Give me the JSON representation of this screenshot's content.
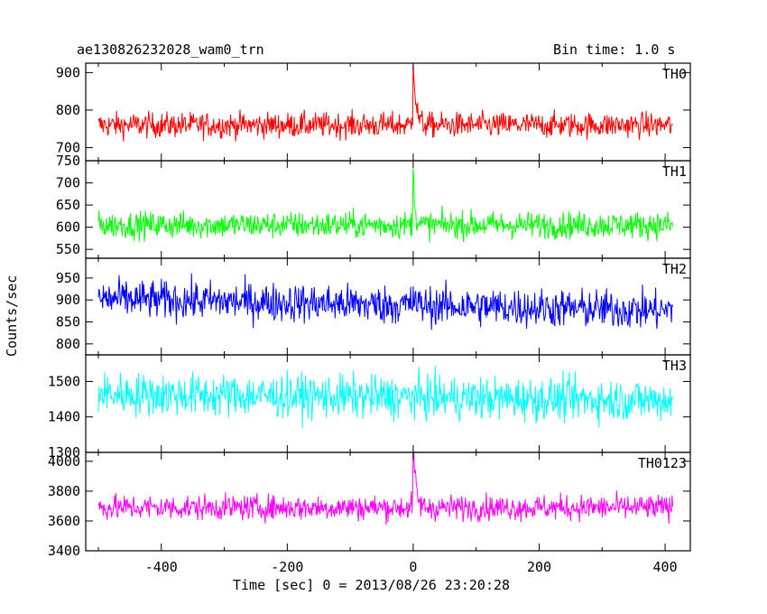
{
  "header": {
    "title": "ae130826232028_wam0_trn",
    "bin_time": "Bin time: 1.0 s"
  },
  "axes": {
    "xlabel": "Time [sec] 0 = 2013/08/26 23:20:28",
    "ylabel": "Counts/sec"
  },
  "chart_data": {
    "type": "line",
    "title": "ae130826232028_wam0_trn",
    "subtitle": "Bin time: 1.0 s",
    "xlabel": "Time [sec] 0 = 2013/08/26 23:20:28",
    "ylabel": "Counts/sec",
    "xlim": [
      -520,
      440
    ],
    "xticks": [
      -400,
      -200,
      0,
      200,
      400
    ],
    "x_range": [
      -500,
      412
    ],
    "bin": 1.0,
    "grid": false,
    "legend": "none",
    "panels": [
      {
        "name": "TH0",
        "color": "#ff0000",
        "ylim": [
          665,
          925
        ],
        "yticks": [
          700,
          800,
          900
        ],
        "mean": 760,
        "noise": 38,
        "slope": 0,
        "peak": 190,
        "decay": 4
      },
      {
        "name": "TH1",
        "color": "#00ff00",
        "ylim": [
          530,
          750
        ],
        "yticks": [
          550,
          600,
          650,
          700,
          750
        ],
        "mean": 605,
        "noise": 34,
        "slope": 0,
        "peak": 120,
        "decay": 3
      },
      {
        "name": "TH2",
        "color": "#0000ff",
        "ylim": [
          775,
          995
        ],
        "yticks": [
          800,
          850,
          900,
          950
        ],
        "mean": 888,
        "noise": 50,
        "slope": -0.03,
        "peak": 30,
        "decay": 2
      },
      {
        "name": "TH3",
        "color": "#00ffff",
        "ylim": [
          1300,
          1575
        ],
        "yticks": [
          1300,
          1400,
          1500
        ],
        "mean": 1455,
        "noise": 68,
        "slope": -0.02,
        "peak": 10,
        "decay": 2
      },
      {
        "name": "TH0123",
        "color": "#ff00ff",
        "ylim": [
          3400,
          4060
        ],
        "yticks": [
          3400,
          3600,
          3800,
          4000
        ],
        "mean": 3690,
        "noise": 95,
        "slope": 0,
        "peak": 430,
        "decay": 4
      }
    ]
  }
}
